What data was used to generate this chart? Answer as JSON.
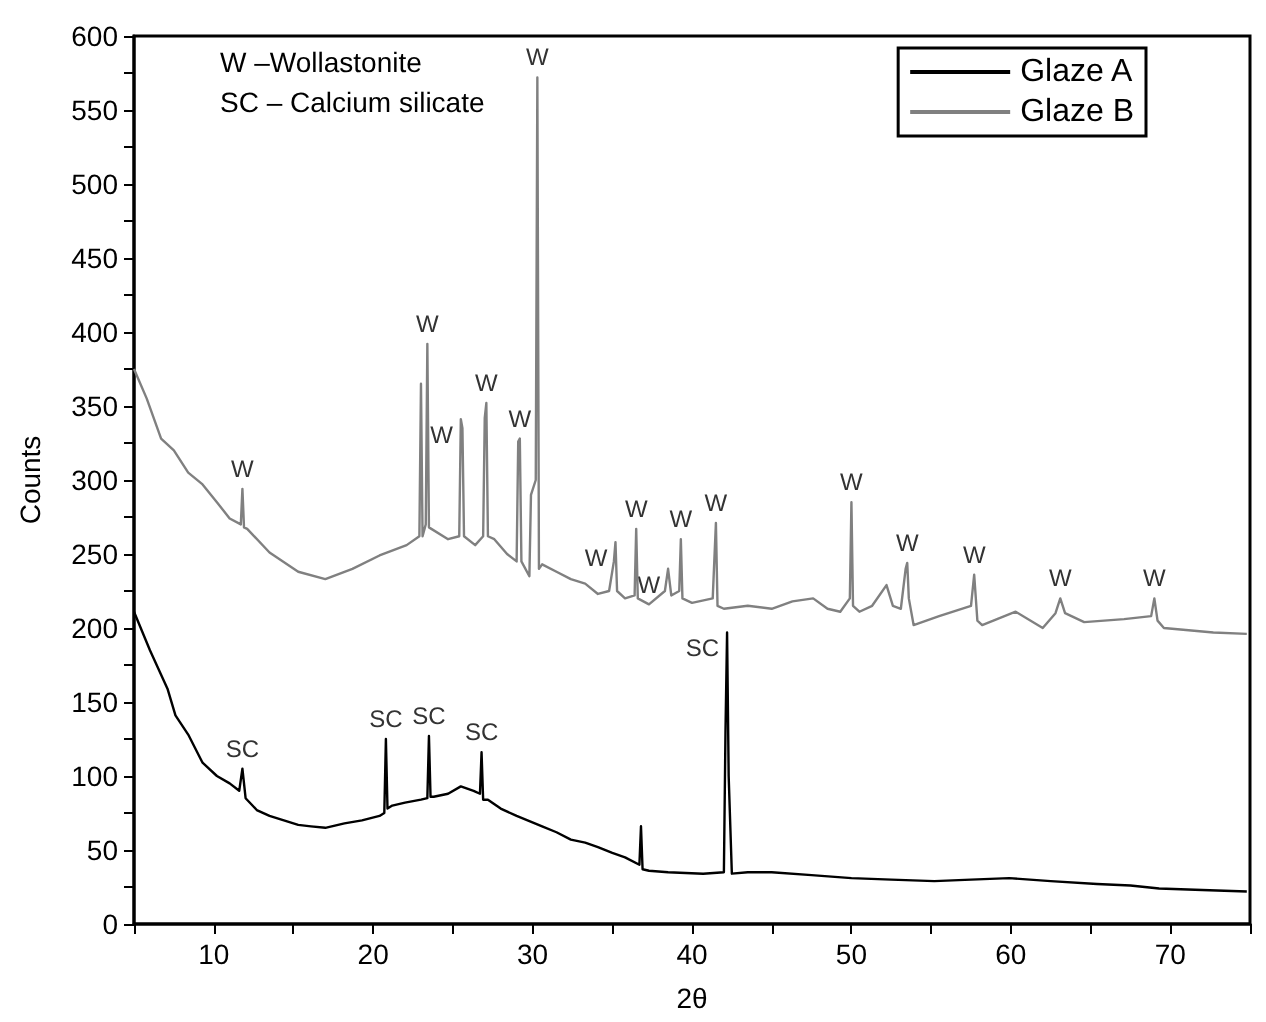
{
  "chart_data": {
    "type": "line",
    "xlabel": "2θ",
    "ylabel": "Counts",
    "xlim": [
      5,
      75
    ],
    "ylim": [
      0,
      600
    ],
    "xticks": [
      10,
      20,
      30,
      40,
      50,
      60,
      70
    ],
    "yticks": [
      0,
      50,
      100,
      150,
      200,
      250,
      300,
      350,
      400,
      450,
      500,
      550,
      600
    ],
    "grid": false,
    "legend": "top right",
    "series": [
      {
        "name": "Glaze A",
        "color": "#000000",
        "x": [
          5,
          6,
          7.1,
          7.6,
          8.4,
          9.3,
          10.2,
          11,
          11.6,
          11.8,
          12,
          12.7,
          13.5,
          14.4,
          15.3,
          16.1,
          17,
          18.2,
          19.3,
          20.4,
          20.7,
          20.8,
          20.9,
          21.2,
          22,
          23,
          23.4,
          23.5,
          23.6,
          23.8,
          24.7,
          25.5,
          26.3,
          26.7,
          26.8,
          26.9,
          27.2,
          28,
          29,
          30.6,
          31.5,
          32.4,
          33.3,
          34.1,
          35,
          35.8,
          36.7,
          36.8,
          36.9,
          37.3,
          38.5,
          40.7,
          42,
          42.1,
          42.2,
          42.3,
          42.5,
          43.5,
          45,
          47.5,
          50,
          52.5,
          55.2,
          57.5,
          59.9,
          62.5,
          65.4,
          67.5,
          69.3,
          72,
          74.8
        ],
        "values": [
          211,
          185,
          159,
          141,
          128,
          109,
          100,
          95,
          90,
          105,
          85,
          77,
          73,
          70,
          67,
          66,
          65,
          68,
          70,
          73,
          75,
          125,
          78,
          80,
          82,
          84,
          85,
          127,
          86,
          86,
          88,
          93,
          90,
          88,
          116,
          84,
          84,
          78,
          73,
          66,
          62,
          57,
          55,
          52,
          48,
          45,
          40,
          66,
          37,
          36,
          35,
          34,
          35,
          130,
          197,
          100,
          34,
          35,
          35,
          33,
          31,
          30,
          29,
          30,
          31,
          29,
          27,
          26,
          24,
          23,
          22
        ]
      },
      {
        "name": "Glaze B",
        "color": "#808080",
        "x": [
          5,
          5.8,
          6.7,
          7.5,
          8.4,
          9.3,
          10.2,
          11,
          11.7,
          11.8,
          11.9,
          12.1,
          13.5,
          15.3,
          17,
          18.7,
          20.4,
          22.1,
          22.9,
          23,
          23.1,
          23.3,
          23.4,
          23.5,
          24.7,
          25.4,
          25.5,
          25.6,
          25.7,
          26.4,
          26.9,
          27,
          27.1,
          27.2,
          27.6,
          28.4,
          29,
          29.1,
          29.2,
          29.3,
          29.8,
          29.9,
          30.2,
          30.3,
          30.4,
          30.6,
          31.5,
          32.4,
          33.3,
          34.1,
          34.8,
          35.1,
          35.2,
          35.3,
          35.8,
          36.4,
          36.5,
          36.6,
          37.3,
          38.3,
          38.5,
          38.7,
          39.2,
          39.3,
          39.4,
          40,
          41.3,
          41.5,
          41.6,
          42,
          43.5,
          45,
          46.3,
          47.6,
          48.5,
          49.3,
          49.9,
          50,
          50.1,
          50.5,
          51.3,
          52.2,
          52.6,
          53.1,
          53.4,
          53.5,
          53.6,
          53.9,
          55.5,
          57.5,
          57.7,
          57.9,
          58.2,
          60.3,
          62,
          62.8,
          63.1,
          63.4,
          64.6,
          67.1,
          68.8,
          69,
          69.2,
          69.6,
          72.7,
          74.8
        ],
        "values": [
          375,
          355,
          328,
          320,
          305,
          297,
          285,
          274,
          270,
          294,
          268,
          267,
          251,
          238,
          233,
          240,
          249,
          256,
          262,
          365,
          262,
          270,
          392,
          268,
          260,
          262,
          341,
          335,
          262,
          256,
          262,
          342,
          352,
          262,
          260,
          250,
          245,
          326,
          328,
          245,
          235,
          290,
          300,
          572,
          240,
          243,
          238,
          233,
          230,
          223,
          225,
          245,
          258,
          225,
          220,
          222,
          267,
          220,
          216,
          225,
          240,
          222,
          225,
          260,
          220,
          217,
          220,
          271,
          215,
          213,
          215,
          213,
          218,
          220,
          213,
          211,
          220,
          285,
          215,
          211,
          215,
          229,
          215,
          213,
          240,
          244,
          220,
          202,
          208,
          215,
          236,
          205,
          202,
          211,
          200,
          210,
          220,
          210,
          204,
          206,
          208,
          220,
          205,
          200,
          197,
          196
        ]
      }
    ],
    "annotations": [
      "W –Wollastonite",
      "SC – Calcium silicate",
      {
        "text": "W",
        "x": 11.8,
        "y": 294
      },
      {
        "text": "W",
        "x": 23.4,
        "y": 392
      },
      {
        "text": "W",
        "x": 25.5,
        "y": 341
      },
      {
        "text": "W",
        "x": 27.1,
        "y": 352
      },
      {
        "text": "W",
        "x": 29.2,
        "y": 328
      },
      {
        "text": "W",
        "x": 30.3,
        "y": 572
      },
      {
        "text": "W",
        "x": 35.2,
        "y": 258
      },
      {
        "text": "W",
        "x": 36.5,
        "y": 267
      },
      {
        "text": "W",
        "x": 38.5,
        "y": 240
      },
      {
        "text": "W",
        "x": 39.3,
        "y": 260
      },
      {
        "text": "W",
        "x": 41.5,
        "y": 271
      },
      {
        "text": "W",
        "x": 50,
        "y": 285
      },
      {
        "text": "W",
        "x": 53.5,
        "y": 244
      },
      {
        "text": "W",
        "x": 57.7,
        "y": 236
      },
      {
        "text": "W",
        "x": 63.1,
        "y": 220
      },
      {
        "text": "W",
        "x": 69,
        "y": 220
      },
      {
        "text": "SC",
        "x": 11.8,
        "y": 105
      },
      {
        "text": "SC",
        "x": 20.8,
        "y": 125
      },
      {
        "text": "SC",
        "x": 23.5,
        "y": 127
      },
      {
        "text": "SC",
        "x": 26.8,
        "y": 116
      },
      {
        "text": "SC",
        "x": 42.2,
        "y": 197
      }
    ]
  }
}
